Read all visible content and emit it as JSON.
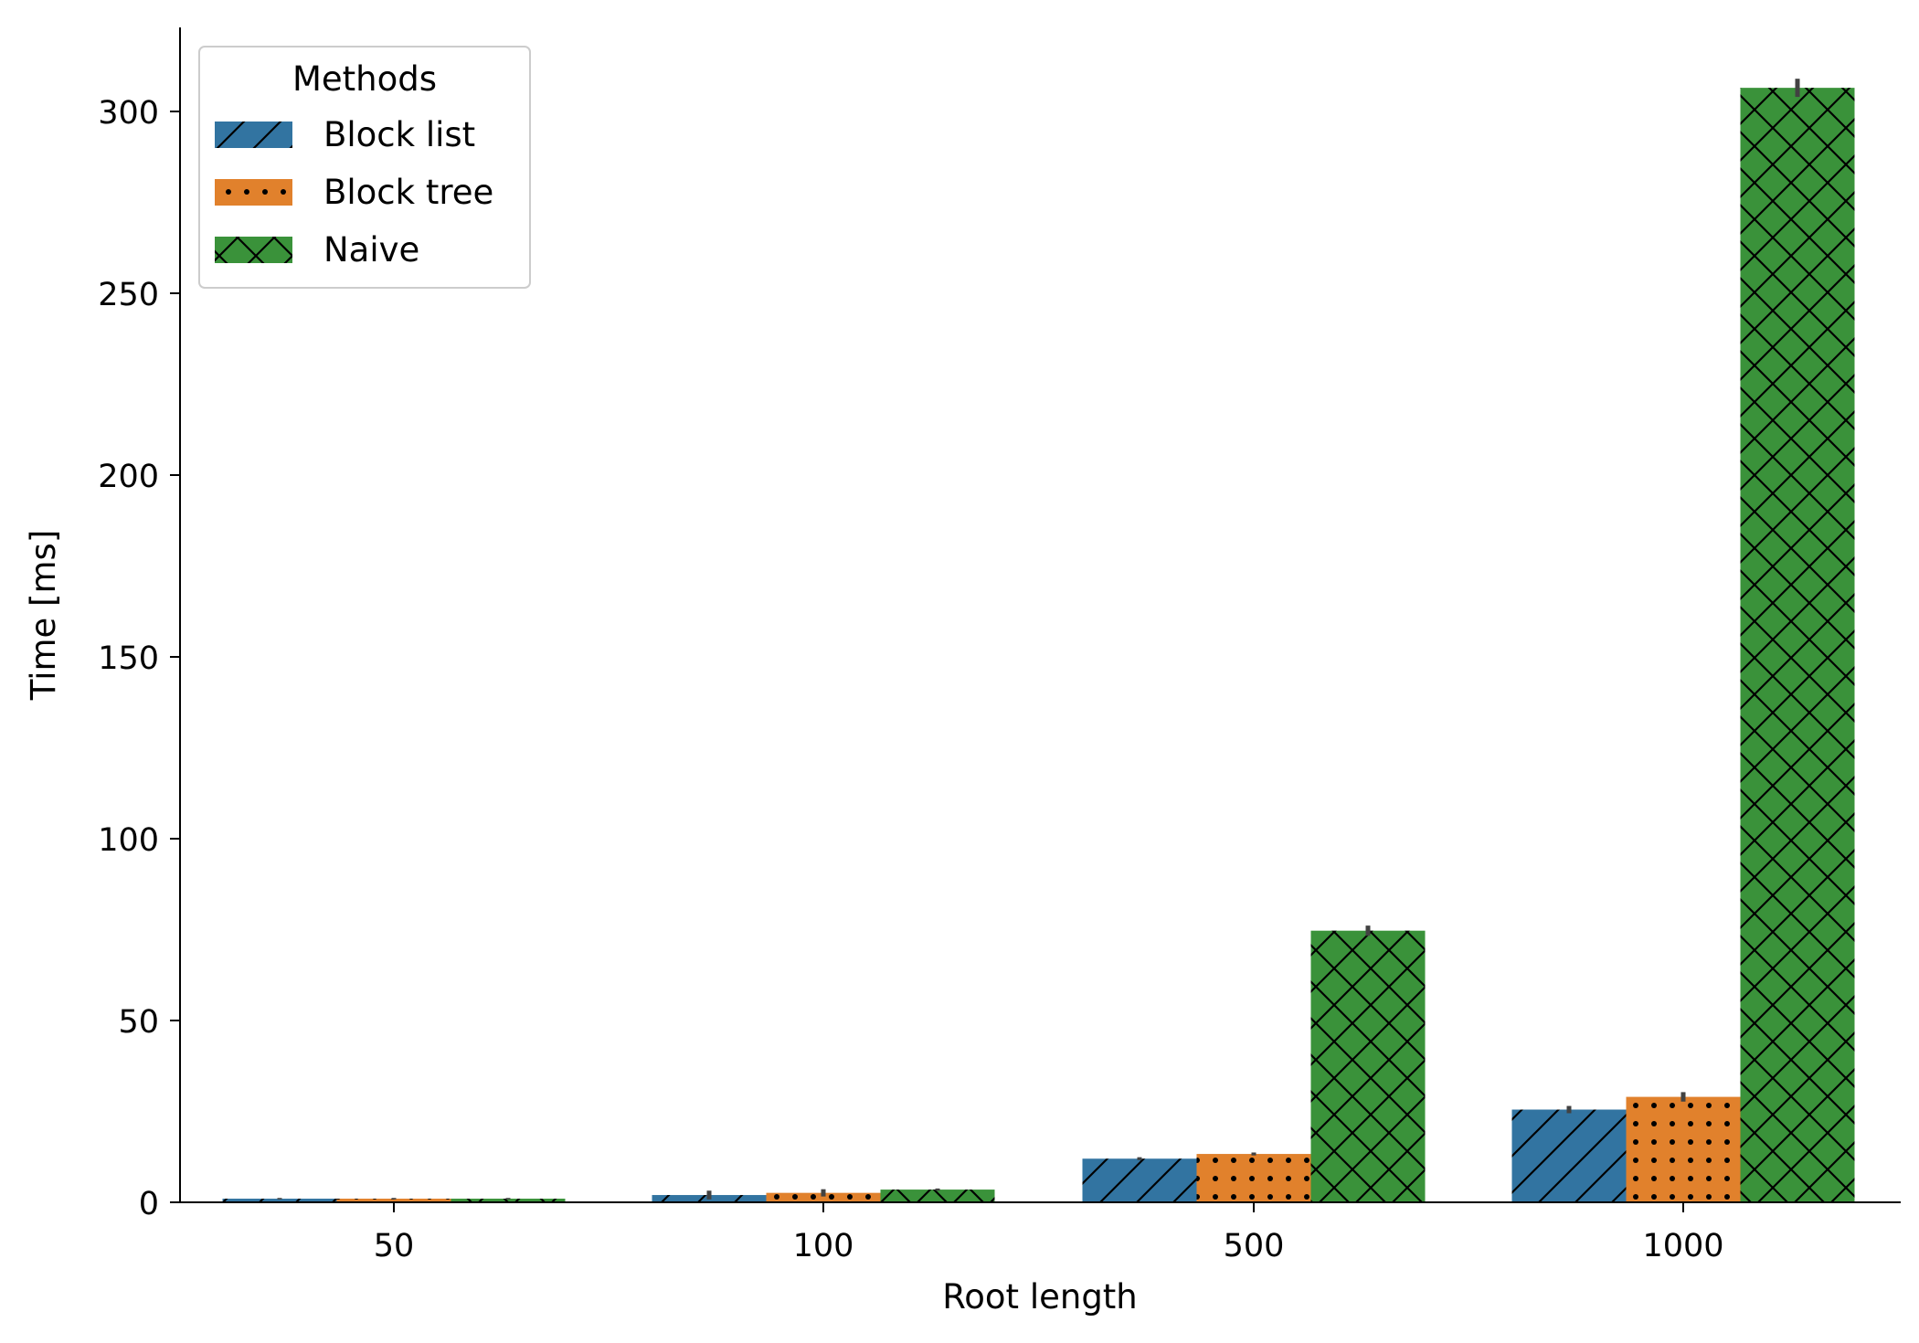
{
  "chart_data": {
    "type": "bar",
    "title": "",
    "xlabel": "Root length",
    "ylabel": "Time [ms]",
    "categories": [
      "50",
      "100",
      "500",
      "1000"
    ],
    "ylim": [
      0,
      325
    ],
    "yticks": [
      0,
      50,
      100,
      150,
      200,
      250,
      300
    ],
    "grid": false,
    "legend": {
      "title": "Methods",
      "placement": "top-left"
    },
    "series": [
      {
        "name": "Block list",
        "color": "#3274a1",
        "hatch": "diagonal",
        "values": [
          1.0,
          2.0,
          12.0,
          25.5
        ],
        "errors": [
          0.2,
          1.2,
          0.4,
          1.0
        ]
      },
      {
        "name": "Block tree",
        "color": "#e1812c",
        "hatch": "dots",
        "values": [
          1.0,
          2.6,
          13.3,
          29.0
        ],
        "errors": [
          0.2,
          1.0,
          0.4,
          1.3
        ]
      },
      {
        "name": "Naive",
        "color": "#3a923a",
        "hatch": "crosshatch",
        "values": [
          1.0,
          3.5,
          74.7,
          306.5
        ],
        "errors": [
          0.2,
          0.3,
          1.4,
          2.5
        ]
      }
    ]
  }
}
